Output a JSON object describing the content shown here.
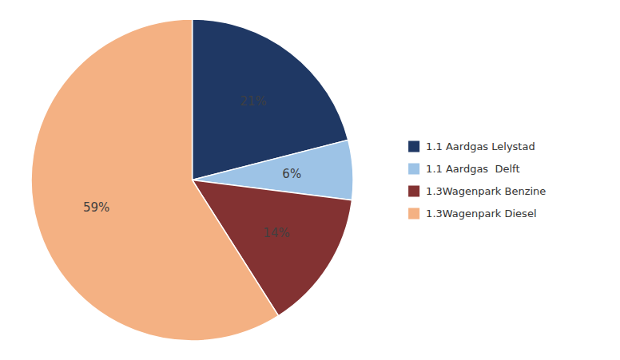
{
  "chart_data": {
    "type": "pie",
    "categories": [
      "1.1 Aardgas Lelystad",
      "1.1 Aardgas  Delft",
      "1.3Wagenpark Benzine",
      "1.3Wagenpark Diesel"
    ],
    "values": [
      21,
      6,
      14,
      59
    ],
    "value_labels": [
      "21%",
      "6%",
      "14%",
      "59%"
    ],
    "colors": [
      "#1F3864",
      "#9DC3E6",
      "#833232",
      "#F4B183"
    ],
    "data_labels": true,
    "legend": "right"
  }
}
